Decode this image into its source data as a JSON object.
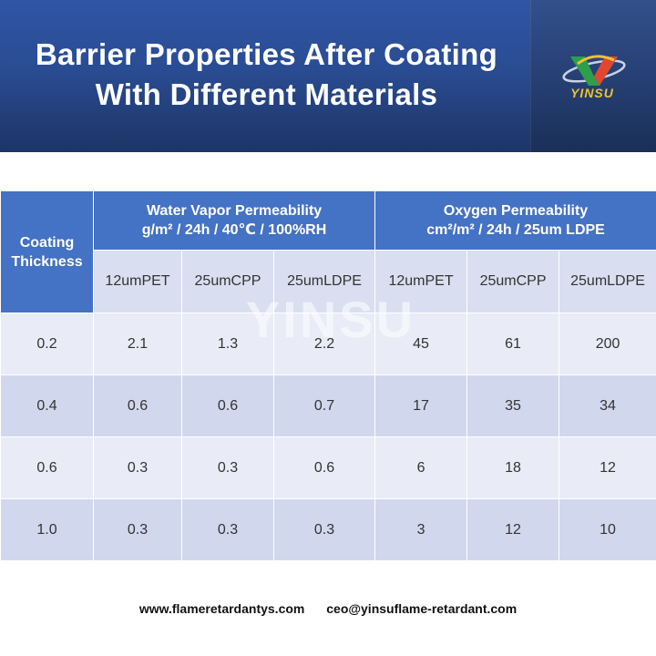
{
  "header": {
    "title_line1": "Barrier Properties After Coating",
    "title_line2": "With Different Materials",
    "logo_text": "YINSU"
  },
  "table": {
    "thickness_header_line1": "Coating",
    "thickness_header_line2": "Thickness",
    "groups": [
      {
        "title": "Water Vapor Permeability",
        "unit": "g/m² / 24h /  40℃ / 100%RH"
      },
      {
        "title": "Oxygen Permeability",
        "unit": "cm²/m² / 24h / 25um LDPE"
      }
    ],
    "subheaders": [
      "12umPET",
      "25umCPP",
      "25umLDPE",
      "12umPET",
      "25umCPP",
      "25umLDPE"
    ],
    "rows": [
      {
        "thickness": "0.2",
        "values": [
          "2.1",
          "1.3",
          "2.2",
          "45",
          "61",
          "200"
        ]
      },
      {
        "thickness": "0.4",
        "values": [
          "0.6",
          "0.6",
          "0.7",
          "17",
          "35",
          "34"
        ]
      },
      {
        "thickness": "0.6",
        "values": [
          "0.3",
          "0.3",
          "0.6",
          "6",
          "18",
          "12"
        ]
      },
      {
        "thickness": "1.0",
        "values": [
          "0.3",
          "0.3",
          "0.3",
          "3",
          "12",
          "10"
        ]
      }
    ]
  },
  "watermark": "YINSU",
  "footer": {
    "website": "www.flameretardantys.com",
    "email": "ceo@yinsuflame-retardant.com"
  },
  "colors": {
    "banner": "#2a4c93",
    "header_cell": "#4472c4",
    "subheader_cell": "#d9dff0",
    "row_light": "#e9ecf6",
    "row_dark": "#d1d8ed",
    "logo_accent": "#f2c12e"
  }
}
